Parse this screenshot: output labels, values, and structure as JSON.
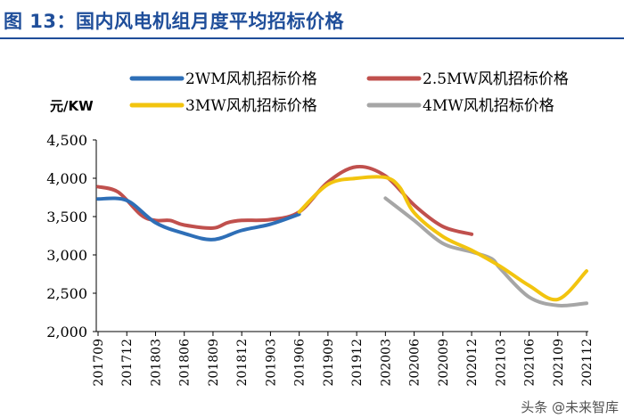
{
  "header": {
    "title": "图 13：国内风电机组月度平均招标价格"
  },
  "watermark": "头条 @未来智库",
  "chart_data": {
    "type": "line",
    "title": "国内风电机组月度平均招标价格",
    "ylabel": "元/KW",
    "xlabel": "",
    "ylim": [
      2000,
      4500
    ],
    "yticks": [
      "2,000",
      "2,500",
      "3,000",
      "3,500",
      "4,000",
      "4,500"
    ],
    "ytick_values": [
      2000,
      2500,
      3000,
      3500,
      4000,
      4500
    ],
    "x_labels": [
      "201709",
      "201712",
      "201803",
      "201806",
      "201809",
      "201812",
      "201903",
      "201906",
      "201909",
      "201912",
      "202003",
      "202006",
      "202009",
      "202012",
      "202103",
      "202106",
      "202109",
      "202112"
    ],
    "legend_position": "top",
    "series": [
      {
        "name": "2WM风机招标价格",
        "color": "#2e6fb7",
        "points": [
          [
            0,
            3730
          ],
          [
            1,
            3710
          ],
          [
            2,
            3420
          ],
          [
            3,
            3280
          ],
          [
            4,
            3200
          ],
          [
            5,
            3320
          ],
          [
            6,
            3400
          ],
          [
            7,
            3530
          ]
        ]
      },
      {
        "name": "2.5MW风机招标价格",
        "color": "#c0504d",
        "points": [
          [
            0,
            3890
          ],
          [
            0.7,
            3820
          ],
          [
            1.5,
            3520
          ],
          [
            2,
            3450
          ],
          [
            2.5,
            3450
          ],
          [
            3,
            3390
          ],
          [
            4,
            3350
          ],
          [
            4.5,
            3420
          ],
          [
            5,
            3450
          ],
          [
            6,
            3460
          ],
          [
            7,
            3560
          ],
          [
            8,
            3950
          ],
          [
            9,
            4150
          ],
          [
            10,
            4030
          ],
          [
            11,
            3650
          ],
          [
            12,
            3370
          ],
          [
            13,
            3270
          ]
        ]
      },
      {
        "name": "3MW风机招标价格",
        "color": "#f2c40f",
        "points": [
          [
            7,
            3560
          ],
          [
            8,
            3920
          ],
          [
            9,
            4000
          ],
          [
            10,
            4010
          ],
          [
            10.5,
            3880
          ],
          [
            11,
            3550
          ],
          [
            12,
            3240
          ],
          [
            13,
            3060
          ],
          [
            14,
            2850
          ],
          [
            15,
            2600
          ],
          [
            16,
            2420
          ],
          [
            17,
            2790
          ]
        ]
      },
      {
        "name": "4MW风机招标价格",
        "color": "#a6a6a6",
        "points": [
          [
            10,
            3740
          ],
          [
            11,
            3450
          ],
          [
            12,
            3150
          ],
          [
            13,
            3040
          ],
          [
            13.7,
            2950
          ],
          [
            14,
            2820
          ],
          [
            15,
            2450
          ],
          [
            16,
            2340
          ],
          [
            17,
            2370
          ]
        ]
      }
    ]
  }
}
